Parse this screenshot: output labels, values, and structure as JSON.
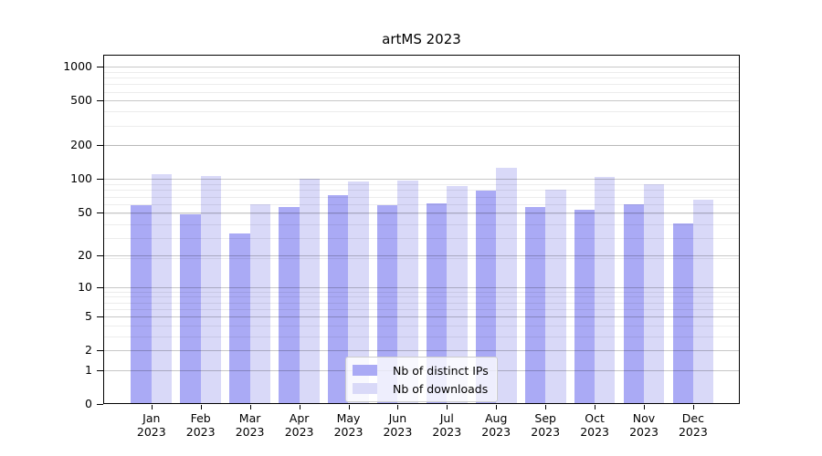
{
  "chart_data": {
    "type": "bar",
    "title": "artMS 2023",
    "categories": [
      "Jan",
      "Feb",
      "Mar",
      "Apr",
      "May",
      "Jun",
      "Jul",
      "Aug",
      "Sep",
      "Oct",
      "Nov",
      "Dec"
    ],
    "year_label": "2023",
    "series": [
      {
        "name": "Nb of distinct IPs",
        "color": "#aaaaf5",
        "values": [
          58,
          48,
          32,
          56,
          71,
          58,
          60,
          78,
          55,
          52,
          59,
          39
        ]
      },
      {
        "name": "Nb of downloads",
        "color": "#d9d9f8",
        "values": [
          110,
          106,
          59,
          100,
          95,
          96,
          86,
          125,
          79,
          104,
          89,
          65
        ]
      }
    ],
    "xlabel": "",
    "ylabel": "",
    "yscale": "log1p",
    "yticks": [
      0,
      1,
      2,
      5,
      10,
      20,
      50,
      100,
      200,
      500,
      1000
    ],
    "minor_gridlines": [
      3,
      4,
      6,
      7,
      8,
      9,
      19,
      29,
      39,
      49,
      59,
      69,
      79,
      89,
      199,
      299,
      399,
      599,
      699,
      799,
      899
    ],
    "ylim": [
      0,
      1285
    ],
    "grid": true,
    "legend_position": "lower center"
  },
  "colors": {
    "axis": "#000000",
    "major_grid": "#c8c8c8",
    "minor_grid": "#ececec",
    "legend_border": "#cccccc",
    "legend_background": "rgba(255,255,255,0.8)"
  }
}
